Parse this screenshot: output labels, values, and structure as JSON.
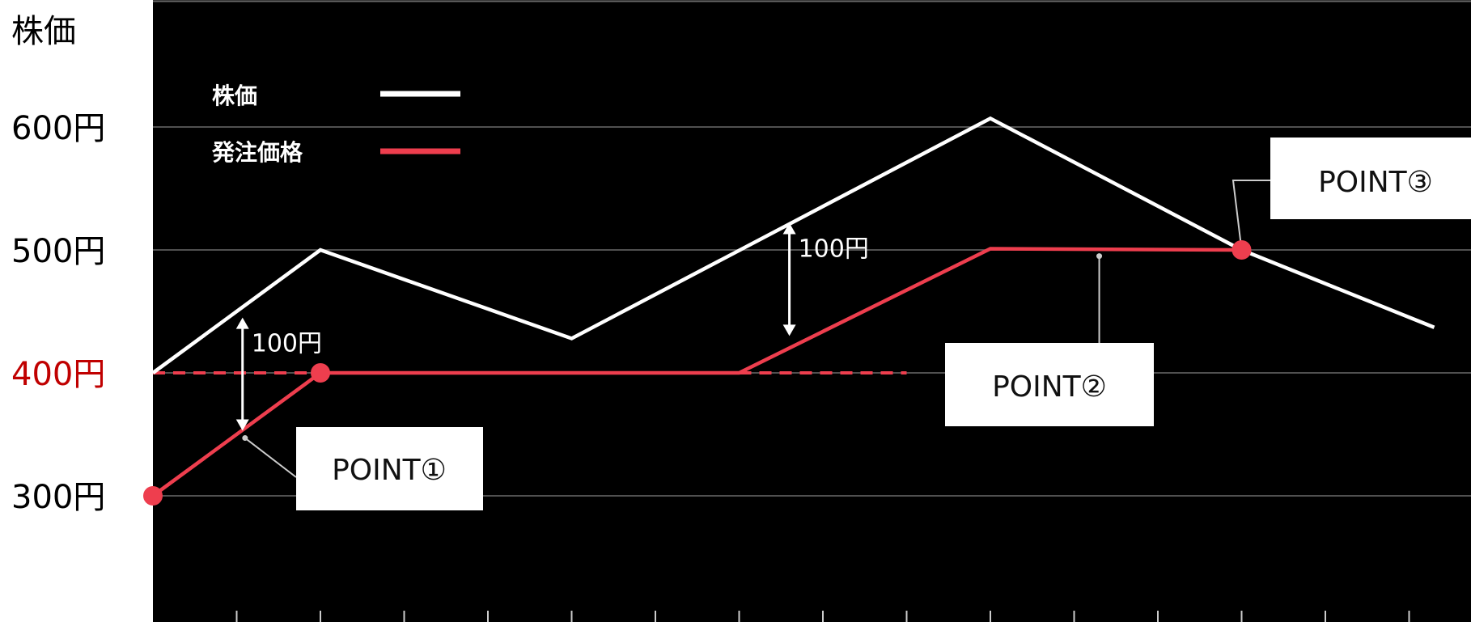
{
  "chart_data": {
    "type": "line",
    "title": "",
    "ylabel": "株価",
    "y_ticks": [
      {
        "value": 600,
        "label": "600円"
      },
      {
        "value": 500,
        "label": "500円"
      },
      {
        "value": 400,
        "label": "400円",
        "highlight": true
      },
      {
        "value": 300,
        "label": "300円"
      }
    ],
    "ylim": [
      200,
      700
    ],
    "x_tick_count": 15,
    "grid": true,
    "legend": {
      "placement": "top-left",
      "entries": [
        {
          "label": "株価",
          "color": "#ffffff"
        },
        {
          "label": "発注価格",
          "color": "#ee3e4e"
        }
      ]
    },
    "series": [
      {
        "name": "株価",
        "color": "#ffffff",
        "points": [
          [
            0,
            400
          ],
          [
            2,
            500
          ],
          [
            5,
            428
          ],
          [
            10,
            607
          ],
          [
            13,
            500
          ],
          [
            15.3,
            437
          ]
        ]
      },
      {
        "name": "発注価格",
        "color": "#ee3e4e",
        "points": [
          [
            0,
            300
          ],
          [
            2,
            400
          ],
          [
            7,
            400
          ],
          [
            10,
            501
          ],
          [
            13,
            500
          ]
        ]
      }
    ],
    "reference_lines": [
      {
        "color": "#ee3e4e",
        "style": "dashed",
        "y": 400,
        "x_from": 0,
        "x_to": 2
      },
      {
        "color": "#ee3e4e",
        "style": "dashed",
        "y": 400,
        "x_from": 7,
        "x_to": 9
      }
    ],
    "markers": [
      {
        "x": 0,
        "y": 300,
        "color": "#ee3e4e"
      },
      {
        "x": 2,
        "y": 400,
        "color": "#ee3e4e"
      },
      {
        "x": 13,
        "y": 500,
        "color": "#ee3e4e"
      }
    ],
    "gap_annotations": [
      {
        "label": "100円",
        "x": 1.07,
        "y_top": 445,
        "y_bottom": 353
      },
      {
        "label": "100円",
        "x": 7.6,
        "y_top": 522,
        "y_bottom": 430
      }
    ],
    "callouts": [
      {
        "label": "POINT①",
        "anchor_x": 1.1,
        "anchor_y": 347
      },
      {
        "label": "POINT②",
        "anchor_x": 11.3,
        "anchor_y": 495
      },
      {
        "label": "POINT③",
        "anchor_x": 13,
        "anchor_y": 500
      }
    ]
  },
  "colors": {
    "background": "#000000",
    "grid": "#6a6a6a",
    "axis_text": "#000000",
    "highlight_text": "#c00000",
    "stock": "#ffffff",
    "order": "#ee3e4e",
    "callout_bg": "#ffffff"
  }
}
